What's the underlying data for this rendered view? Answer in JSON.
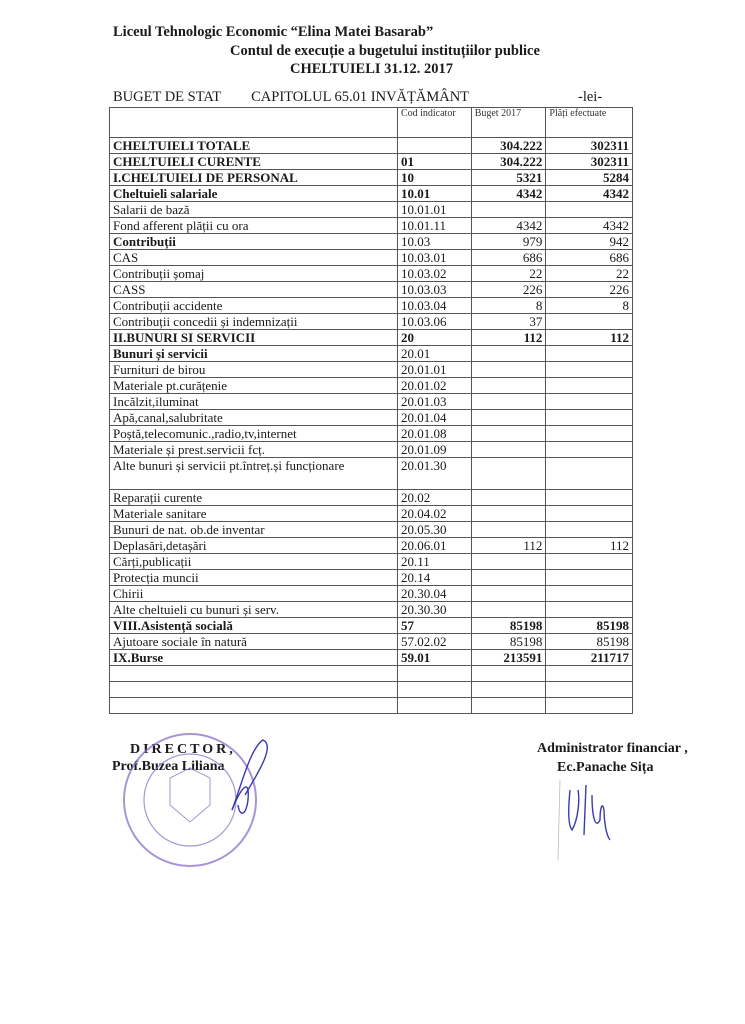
{
  "header": {
    "institution": "Liceul Tehnologic Economic “Elina Matei Basarab”",
    "title": "Contul de execuție a bugetului instituțiilor publice",
    "subtitle": "CHELTUIELI 31.12. 2017",
    "budget": "BUGET DE STAT",
    "chapter": "CAPITOLUL 65.01 INVĂȚĂMÂNT",
    "unit": "-lei-"
  },
  "table": {
    "columns": [
      "",
      "Cod indicator",
      "Buget 2017",
      "Plăți efectuate"
    ],
    "rows": [
      {
        "name": "CHELTUIELI TOTALE",
        "code": "",
        "budget": "304.222",
        "paid": "302311",
        "bold": true
      },
      {
        "name": "CHELTUIELI CURENTE",
        "code": "01",
        "budget": "304.222",
        "paid": "302311",
        "bold": true
      },
      {
        "name": "I.CHELTUIELI DE PERSONAL",
        "code": "10",
        "budget": "5321",
        "paid": "5284",
        "bold": true
      },
      {
        "name": "Cheltuieli salariale",
        "code": "10.01",
        "budget": "4342",
        "paid": "4342",
        "bold": true
      },
      {
        "name": "Salarii de bază",
        "code": "10.01.01",
        "budget": "",
        "paid": ""
      },
      {
        "name": "Fond afferent plății cu ora",
        "code": "10.01.11",
        "budget": "4342",
        "paid": "4342"
      },
      {
        "name": "Contribuții",
        "code": "10.03",
        "budget": "979",
        "paid": "942",
        "boldName": true
      },
      {
        "name": "CAS",
        "code": "10.03.01",
        "budget": "686",
        "paid": "686"
      },
      {
        "name": "Contribuții șomaj",
        "code": "10.03.02",
        "budget": "22",
        "paid": "22"
      },
      {
        "name": "CASS",
        "code": "10.03.03",
        "budget": "226",
        "paid": "226"
      },
      {
        "name": "Contribuții accidente",
        "code": "10.03.04",
        "budget": "8",
        "paid": "8"
      },
      {
        "name": "Contribuții concedii și indemnizații",
        "code": "10.03.06",
        "budget": "37",
        "paid": ""
      },
      {
        "name": "II.BUNURI SI SERVICII",
        "code": "20",
        "budget": "112",
        "paid": "112",
        "bold": true
      },
      {
        "name": "Bunuri și servicii",
        "code": "20.01",
        "budget": "",
        "paid": "",
        "boldName": true
      },
      {
        "name": "Furnituri de birou",
        "code": "20.01.01",
        "budget": "",
        "paid": ""
      },
      {
        "name": "Materiale pt.curățenie",
        "code": "20.01.02",
        "budget": "",
        "paid": ""
      },
      {
        "name": "Incălzit,iluminat",
        "code": "20.01.03",
        "budget": "",
        "paid": ""
      },
      {
        "name": "Apă,canal,salubritate",
        "code": "20.01.04",
        "budget": "",
        "paid": ""
      },
      {
        "name": "Poștă,telecomunic.,radio,tv,internet",
        "code": "20.01.08",
        "budget": "",
        "paid": ""
      },
      {
        "name": "Materiale și prest.servicii fcț.",
        "code": "20.01.09",
        "budget": "",
        "paid": ""
      },
      {
        "name": "Alte bunuri și servicii pt.întreț.și funcționare",
        "code": "20.01.30",
        "budget": "",
        "paid": "",
        "tall": true
      },
      {
        "name": "Reparații curente",
        "code": "20.02",
        "budget": "",
        "paid": ""
      },
      {
        "name": "Materiale sanitare",
        "code": "20.04.02",
        "budget": "",
        "paid": ""
      },
      {
        "name": "Bunuri de nat. ob.de inventar",
        "code": "20.05.30",
        "budget": "",
        "paid": ""
      },
      {
        "name": "Deplasări,detașări",
        "code": "20.06.01",
        "budget": "112",
        "paid": "112"
      },
      {
        "name": "Cărți,publicații",
        "code": "20.11",
        "budget": "",
        "paid": ""
      },
      {
        "name": "Protecția muncii",
        "code": "20.14",
        "budget": "",
        "paid": ""
      },
      {
        "name": "Chirii",
        "code": "20.30.04",
        "budget": "",
        "paid": ""
      },
      {
        "name": "Alte cheltuieli cu bunuri și serv.",
        "code": "20.30.30",
        "budget": "",
        "paid": ""
      },
      {
        "name": "VIII.Asistență socială",
        "code": "57",
        "budget": "85198",
        "paid": "85198",
        "bold": true
      },
      {
        "name": "Ajutoare sociale în  natură",
        "code": "57.02.02",
        "budget": "85198",
        "paid": "85198"
      },
      {
        "name": "IX.Burse",
        "code": "59.01",
        "budget": "213591",
        "paid": "211717",
        "bold": true
      },
      {
        "name": "",
        "code": "",
        "budget": "",
        "paid": ""
      },
      {
        "name": "",
        "code": "",
        "budget": "",
        "paid": ""
      },
      {
        "name": "",
        "code": "",
        "budget": "",
        "paid": ""
      }
    ]
  },
  "signatures": {
    "director_title": "DIRECTOR,",
    "director_name": "Prof.Buzea Liliana",
    "admin_title": "Administrator financiar ,",
    "admin_name": "Ec.Panache Sița"
  },
  "colors": {
    "stamp": "#8a72c8",
    "ink": "#3a3ab0"
  }
}
